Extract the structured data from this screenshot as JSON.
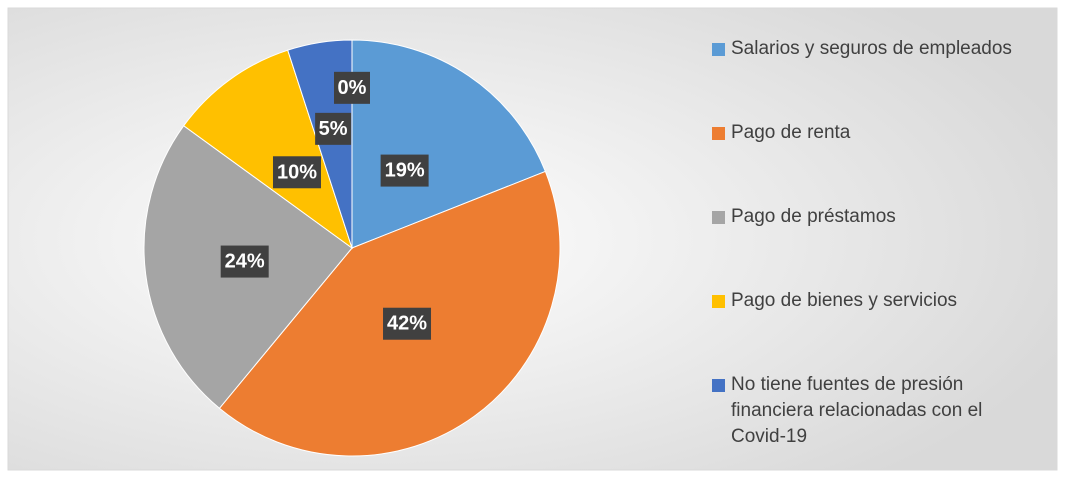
{
  "chart_data": {
    "type": "pie",
    "categories": [
      "Salarios y seguros de empleados",
      "Pago de renta",
      "Pago de préstamos",
      "Pago de bienes y servicios",
      "No tiene fuentes de presión financiera relacionadas con el Covid-19",
      null
    ],
    "values": [
      19,
      42,
      24,
      10,
      5,
      0
    ],
    "value_labels": [
      "19%",
      "42%",
      "24%",
      "10%",
      "5%",
      "0%"
    ],
    "colors": [
      "#5b9bd5",
      "#ed7d31",
      "#a5a5a5",
      "#ffc000",
      "#4472c4",
      "#70ad47"
    ],
    "legend": "right"
  }
}
